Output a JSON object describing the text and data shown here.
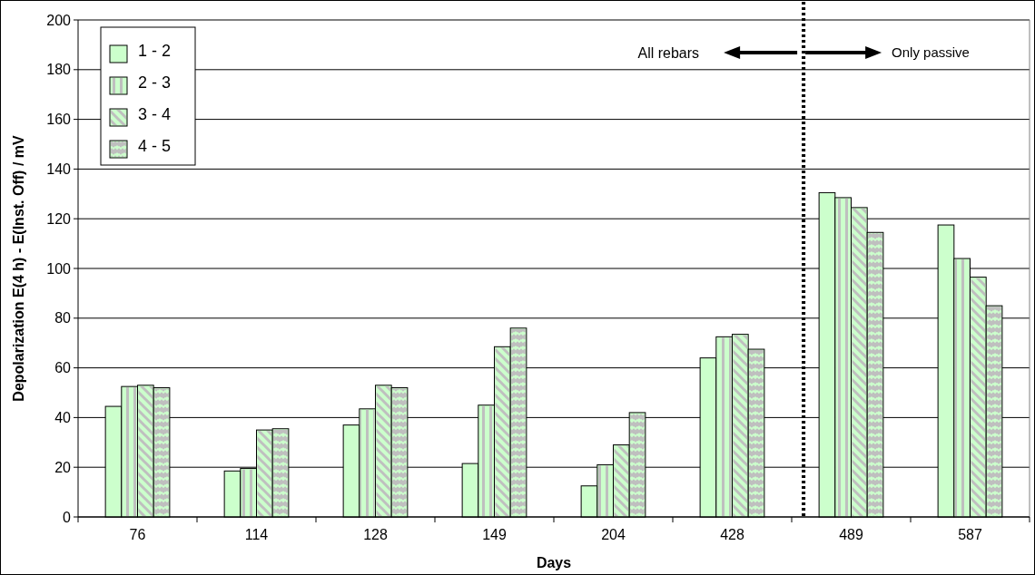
{
  "chart_data": {
    "type": "bar",
    "xlabel": "Days",
    "ylabel": "Depolarization E(4 h) - E(Inst. Off) / mV",
    "categories": [
      "76",
      "114",
      "128",
      "149",
      "204",
      "428",
      "489",
      "587"
    ],
    "series": [
      {
        "name": "1 - 2",
        "color": "#ccffcc",
        "values": [
          44.5,
          18.5,
          37,
          21.5,
          12.5,
          64,
          130.5,
          117.5
        ]
      },
      {
        "name": "2 - 3",
        "color": "#ccffcc",
        "values": [
          52.5,
          19.5,
          43.5,
          45,
          21,
          72.5,
          128.5,
          104
        ]
      },
      {
        "name": "3 - 4",
        "color": "#ccffcc",
        "values": [
          53,
          35,
          53,
          68.5,
          29,
          73.5,
          124.5,
          96.5
        ]
      },
      {
        "name": "4 - 5",
        "color": "#ccffcc",
        "values": [
          52,
          35.5,
          52,
          76,
          42,
          67.5,
          114.5,
          85
        ]
      }
    ],
    "ref_lines": [
      {
        "axis": "x",
        "value": "489",
        "line_style": "dotted",
        "color": "#000000"
      }
    ],
    "ylim": [
      0,
      200
    ],
    "yticks": [
      0,
      20,
      40,
      60,
      80,
      100,
      120,
      140,
      160,
      180,
      200
    ],
    "grid": "y",
    "legend": "top left",
    "annotations": [
      "All rebars",
      "Only passive"
    ]
  }
}
